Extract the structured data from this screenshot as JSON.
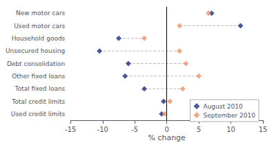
{
  "chart_data": {
    "type": "dumbbell",
    "orientation": "horizontal",
    "categories": [
      "New motor cars",
      "Used motor cars",
      "Household goods",
      "Unsecured housing",
      "Debt consolidation",
      "Other fixed loans",
      "Total fixed loans",
      "Total credit limits",
      "Used credit limits"
    ],
    "series": [
      {
        "name": "August 2010",
        "color": "#1f2f7a",
        "marker": "diamond",
        "values": [
          7.0,
          11.5,
          -7.5,
          -10.5,
          -6.0,
          -6.5,
          -3.5,
          -0.5,
          -0.8
        ]
      },
      {
        "name": "September 2010",
        "color": "#e8956d",
        "marker": "diamond",
        "values": [
          6.5,
          2.0,
          -3.5,
          2.0,
          3.0,
          5.0,
          2.5,
          0.5,
          -0.3
        ]
      }
    ],
    "color": "#bbbbbb",
    "line_style": "dashed",
    "xlabel": "% change",
    "xlim": [
      -15,
      15
    ],
    "xticks": [
      -15,
      -10,
      -5,
      0,
      5,
      10,
      15
    ],
    "grid": false,
    "legend": "lower right"
  }
}
